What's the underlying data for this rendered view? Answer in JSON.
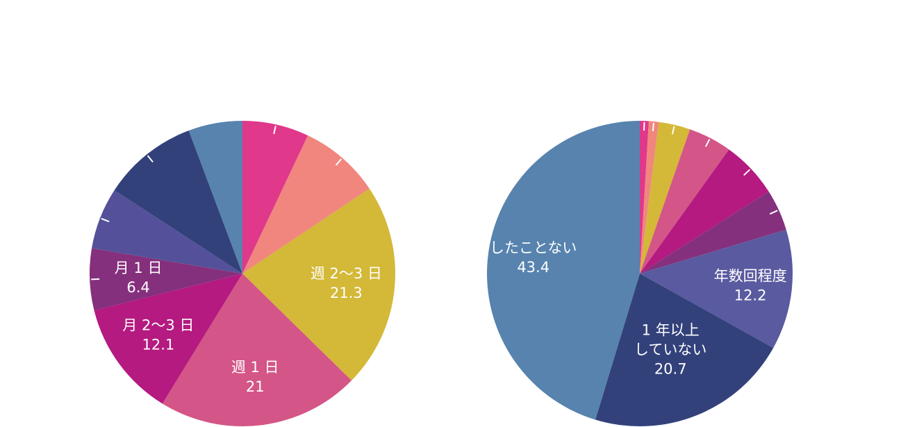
{
  "chart_data": [
    {
      "type": "pie",
      "start": "top",
      "direction": "clockwise",
      "slices": [
        {
          "label": "",
          "value": 6.9,
          "color": "#e0388a"
        },
        {
          "label": "",
          "value": 8.4,
          "color": "#f0867e"
        },
        {
          "label": "週 2〜3 日",
          "value": 21.3,
          "color": "#d4b838"
        },
        {
          "label": "週 1 日",
          "value": 21,
          "color": "#d45587"
        },
        {
          "label": "月 2〜3 日",
          "value": 12.1,
          "color": "#b41a80"
        },
        {
          "label": "月 1 日",
          "value": 6.4,
          "color": "#85307d"
        },
        {
          "label": "",
          "value": 6.4,
          "color": "#54519a"
        },
        {
          "label": "",
          "value": 9.9,
          "color": "#33417b"
        },
        {
          "label": "",
          "value": 5.6,
          "color": "#5783ae"
        }
      ]
    },
    {
      "type": "pie",
      "start": "top",
      "direction": "clockwise",
      "slices": [
        {
          "label": "",
          "value": 0.9,
          "color": "#e0388a"
        },
        {
          "label": "",
          "value": 1.0,
          "color": "#f0867e"
        },
        {
          "label": "",
          "value": 3.2,
          "color": "#d4b838"
        },
        {
          "label": "",
          "value": 4.4,
          "color": "#d45587"
        },
        {
          "label": "",
          "value": 5.8,
          "color": "#b41a80"
        },
        {
          "label": "",
          "value": 4.2,
          "color": "#85307d"
        },
        {
          "label": "年数回程度",
          "value": 12.2,
          "color": "#5a5aa0"
        },
        {
          "label": "1 年以上\nしていない",
          "value": 20.7,
          "color": "#33417b"
        },
        {
          "label": "したことない",
          "value": 43.4,
          "color": "#5783ae"
        }
      ]
    }
  ]
}
